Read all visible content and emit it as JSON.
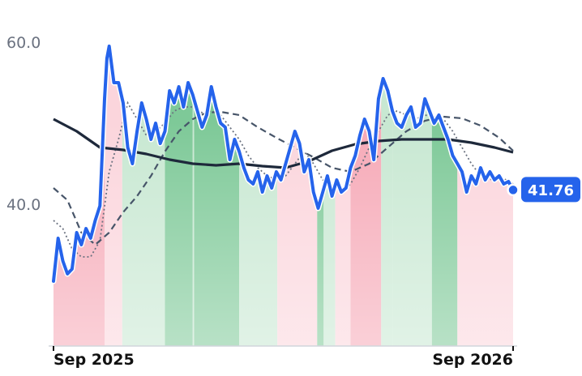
{
  "chart_data": {
    "type": "line",
    "x_range": [
      "2025-09",
      "2026-09"
    ],
    "ylim": [
      27,
      65
    ],
    "y_ticks": [
      {
        "value": 60,
        "label": "60.0"
      },
      {
        "value": 40,
        "label": "40.0"
      }
    ],
    "x_ticks": [
      {
        "pos": 0,
        "label": "Sep 2025"
      },
      {
        "pos": 1,
        "label": "Sep 2026"
      }
    ],
    "last_value": 41.76,
    "last_value_label": "41.76",
    "grid": false,
    "colors": {
      "price": "#2563eb",
      "long_ma": "#1e293b",
      "mid_ma": "#475569",
      "short_ma": "#6b7280",
      "band_up_light": "#c8e8d2",
      "band_up_strong": "#7ec998",
      "band_down_light": "#fbd5dc",
      "band_down_strong": "#f6a9b7"
    },
    "price": [
      [
        0.0,
        30.5
      ],
      [
        0.01,
        35.8
      ],
      [
        0.02,
        33.0
      ],
      [
        0.03,
        31.4
      ],
      [
        0.04,
        32.0
      ],
      [
        0.05,
        36.5
      ],
      [
        0.06,
        35.0
      ],
      [
        0.07,
        37.0
      ],
      [
        0.08,
        35.8
      ],
      [
        0.09,
        38.0
      ],
      [
        0.1,
        39.8
      ],
      [
        0.11,
        53.0
      ],
      [
        0.115,
        58.0
      ],
      [
        0.12,
        59.5
      ],
      [
        0.13,
        55.0
      ],
      [
        0.14,
        55.0
      ],
      [
        0.15,
        52.5
      ],
      [
        0.16,
        47.0
      ],
      [
        0.17,
        45.0
      ],
      [
        0.18,
        49.0
      ],
      [
        0.19,
        52.5
      ],
      [
        0.2,
        50.5
      ],
      [
        0.21,
        48.0
      ],
      [
        0.22,
        50.0
      ],
      [
        0.23,
        47.5
      ],
      [
        0.24,
        49.0
      ],
      [
        0.25,
        54.0
      ],
      [
        0.26,
        52.5
      ],
      [
        0.27,
        54.5
      ],
      [
        0.28,
        52.0
      ],
      [
        0.29,
        55.0
      ],
      [
        0.3,
        53.5
      ],
      [
        0.31,
        51.5
      ],
      [
        0.32,
        49.5
      ],
      [
        0.33,
        51.0
      ],
      [
        0.34,
        54.5
      ],
      [
        0.35,
        52.0
      ],
      [
        0.36,
        50.0
      ],
      [
        0.37,
        49.5
      ],
      [
        0.38,
        45.5
      ],
      [
        0.39,
        48.0
      ],
      [
        0.4,
        46.5
      ],
      [
        0.41,
        44.5
      ],
      [
        0.42,
        43.0
      ],
      [
        0.43,
        42.5
      ],
      [
        0.44,
        44.0
      ],
      [
        0.45,
        41.5
      ],
      [
        0.46,
        43.5
      ],
      [
        0.47,
        42.0
      ],
      [
        0.48,
        44.0
      ],
      [
        0.49,
        43.0
      ],
      [
        0.5,
        45.0
      ],
      [
        0.51,
        47.0
      ],
      [
        0.52,
        49.0
      ],
      [
        0.53,
        47.5
      ],
      [
        0.54,
        44.0
      ],
      [
        0.55,
        45.5
      ],
      [
        0.56,
        41.5
      ],
      [
        0.57,
        39.5
      ],
      [
        0.58,
        41.5
      ],
      [
        0.59,
        43.5
      ],
      [
        0.6,
        41.0
      ],
      [
        0.61,
        43.0
      ],
      [
        0.62,
        41.5
      ],
      [
        0.63,
        42.0
      ],
      [
        0.64,
        44.5
      ],
      [
        0.65,
        46.0
      ],
      [
        0.66,
        48.5
      ],
      [
        0.67,
        50.5
      ],
      [
        0.68,
        49.0
      ],
      [
        0.69,
        45.5
      ],
      [
        0.7,
        53.0
      ],
      [
        0.71,
        55.5
      ],
      [
        0.72,
        54.0
      ],
      [
        0.73,
        51.5
      ],
      [
        0.74,
        50.0
      ],
      [
        0.75,
        49.5
      ],
      [
        0.76,
        51.0
      ],
      [
        0.77,
        52.0
      ],
      [
        0.78,
        49.5
      ],
      [
        0.79,
        50.0
      ],
      [
        0.8,
        53.0
      ],
      [
        0.81,
        51.5
      ],
      [
        0.82,
        50.0
      ],
      [
        0.83,
        51.0
      ],
      [
        0.84,
        49.5
      ],
      [
        0.85,
        48.0
      ],
      [
        0.86,
        46.0
      ],
      [
        0.87,
        45.0
      ],
      [
        0.88,
        44.0
      ],
      [
        0.89,
        41.5
      ],
      [
        0.9,
        43.5
      ],
      [
        0.91,
        42.5
      ],
      [
        0.92,
        44.5
      ],
      [
        0.93,
        43.0
      ],
      [
        0.94,
        44.0
      ],
      [
        0.95,
        43.0
      ],
      [
        0.96,
        43.5
      ],
      [
        0.97,
        42.5
      ],
      [
        0.98,
        42.8
      ],
      [
        0.99,
        41.76
      ]
    ],
    "long_ma": [
      [
        0.0,
        50.5
      ],
      [
        0.05,
        49.0
      ],
      [
        0.1,
        47.0
      ],
      [
        0.15,
        46.7
      ],
      [
        0.2,
        46.2
      ],
      [
        0.25,
        45.5
      ],
      [
        0.3,
        45.0
      ],
      [
        0.35,
        44.8
      ],
      [
        0.4,
        45.0
      ],
      [
        0.45,
        44.7
      ],
      [
        0.5,
        44.5
      ],
      [
        0.55,
        45.3
      ],
      [
        0.6,
        46.6
      ],
      [
        0.65,
        47.4
      ],
      [
        0.7,
        47.8
      ],
      [
        0.75,
        48.0
      ],
      [
        0.8,
        48.0
      ],
      [
        0.85,
        48.0
      ],
      [
        0.9,
        47.6
      ],
      [
        0.95,
        47.0
      ],
      [
        0.99,
        46.4
      ]
    ],
    "mid_ma": [
      [
        0.0,
        42.0
      ],
      [
        0.03,
        40.5
      ],
      [
        0.06,
        36.5
      ],
      [
        0.09,
        35.0
      ],
      [
        0.12,
        36.5
      ],
      [
        0.15,
        39.0
      ],
      [
        0.18,
        41.0
      ],
      [
        0.21,
        43.5
      ],
      [
        0.24,
        46.5
      ],
      [
        0.27,
        49.0
      ],
      [
        0.3,
        50.5
      ],
      [
        0.33,
        51.3
      ],
      [
        0.36,
        51.4
      ],
      [
        0.4,
        51.0
      ],
      [
        0.44,
        49.5
      ],
      [
        0.48,
        48.2
      ],
      [
        0.52,
        47.0
      ],
      [
        0.56,
        45.8
      ],
      [
        0.6,
        44.5
      ],
      [
        0.64,
        44.0
      ],
      [
        0.68,
        45.0
      ],
      [
        0.72,
        47.0
      ],
      [
        0.76,
        49.0
      ],
      [
        0.8,
        50.3
      ],
      [
        0.84,
        50.8
      ],
      [
        0.88,
        50.6
      ],
      [
        0.92,
        49.7
      ],
      [
        0.96,
        48.2
      ],
      [
        0.99,
        46.6
      ]
    ],
    "short_ma": [
      [
        0.0,
        38.0
      ],
      [
        0.02,
        37.0
      ],
      [
        0.04,
        34.5
      ],
      [
        0.06,
        33.5
      ],
      [
        0.08,
        33.5
      ],
      [
        0.1,
        35.5
      ],
      [
        0.12,
        44.0
      ],
      [
        0.14,
        48.0
      ],
      [
        0.16,
        52.5
      ],
      [
        0.18,
        50.5
      ],
      [
        0.2,
        48.5
      ],
      [
        0.22,
        49.0
      ],
      [
        0.24,
        50.0
      ],
      [
        0.26,
        51.5
      ],
      [
        0.28,
        52.0
      ],
      [
        0.3,
        52.0
      ],
      [
        0.32,
        51.3
      ],
      [
        0.34,
        51.5
      ],
      [
        0.36,
        51.0
      ],
      [
        0.38,
        49.5
      ],
      [
        0.4,
        48.0
      ],
      [
        0.42,
        46.0
      ],
      [
        0.44,
        44.5
      ],
      [
        0.46,
        43.5
      ],
      [
        0.48,
        43.0
      ],
      [
        0.5,
        43.5
      ],
      [
        0.52,
        45.0
      ],
      [
        0.54,
        46.5
      ],
      [
        0.56,
        45.0
      ],
      [
        0.58,
        43.0
      ],
      [
        0.6,
        42.5
      ],
      [
        0.62,
        41.5
      ],
      [
        0.64,
        42.5
      ],
      [
        0.66,
        44.5
      ],
      [
        0.68,
        47.0
      ],
      [
        0.7,
        49.0
      ],
      [
        0.72,
        51.0
      ],
      [
        0.74,
        51.5
      ],
      [
        0.76,
        51.0
      ],
      [
        0.78,
        50.5
      ],
      [
        0.8,
        51.0
      ],
      [
        0.82,
        50.8
      ],
      [
        0.84,
        50.5
      ],
      [
        0.86,
        49.0
      ],
      [
        0.88,
        47.0
      ],
      [
        0.9,
        45.0
      ],
      [
        0.92,
        43.5
      ],
      [
        0.94,
        43.0
      ],
      [
        0.96,
        43.5
      ],
      [
        0.99,
        42.5
      ]
    ],
    "bands": [
      {
        "from": 0.0,
        "to": 0.11,
        "trend": "down",
        "strength": "strong"
      },
      {
        "from": 0.11,
        "to": 0.148,
        "trend": "down",
        "strength": "light"
      },
      {
        "from": 0.148,
        "to": 0.24,
        "trend": "up",
        "strength": "light"
      },
      {
        "from": 0.24,
        "to": 0.3,
        "trend": "up",
        "strength": "strong"
      },
      {
        "from": 0.3,
        "to": 0.303,
        "trend": "up",
        "strength": "light"
      },
      {
        "from": 0.303,
        "to": 0.4,
        "trend": "up",
        "strength": "strong"
      },
      {
        "from": 0.4,
        "to": 0.482,
        "trend": "up",
        "strength": "light"
      },
      {
        "from": 0.482,
        "to": 0.568,
        "trend": "down",
        "strength": "light"
      },
      {
        "from": 0.568,
        "to": 0.582,
        "trend": "up",
        "strength": "strong"
      },
      {
        "from": 0.582,
        "to": 0.607,
        "trend": "up",
        "strength": "light"
      },
      {
        "from": 0.607,
        "to": 0.64,
        "trend": "down",
        "strength": "light"
      },
      {
        "from": 0.64,
        "to": 0.706,
        "trend": "down",
        "strength": "strong"
      },
      {
        "from": 0.706,
        "to": 0.73,
        "trend": "up",
        "strength": "light"
      },
      {
        "from": 0.73,
        "to": 0.815,
        "trend": "up",
        "strength": "light"
      },
      {
        "from": 0.815,
        "to": 0.87,
        "trend": "up",
        "strength": "strong"
      },
      {
        "from": 0.87,
        "to": 0.99,
        "trend": "down",
        "strength": "light"
      }
    ]
  }
}
